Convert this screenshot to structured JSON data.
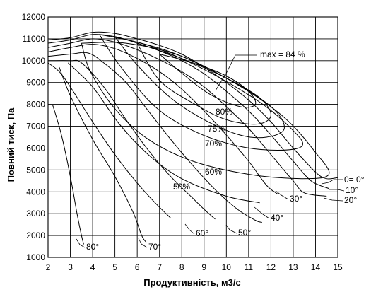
{
  "chart_data": {
    "type": "line",
    "title": "",
    "xlabel": "Продуктивність, м3/с",
    "ylabel": "Повний тиск, Па",
    "xlim": [
      2,
      15
    ],
    "ylim": [
      1000,
      12000
    ],
    "x_ticks": [
      2,
      3,
      4,
      5,
      6,
      7,
      8,
      9,
      10,
      11,
      12,
      13,
      14,
      15
    ],
    "y_ticks": [
      1000,
      2000,
      3000,
      4000,
      5000,
      6000,
      7000,
      8000,
      9000,
      10000,
      11000,
      12000
    ],
    "grid": true,
    "series": [
      {
        "name": "0=0°",
        "points": [
          [
            2.0,
            10950
          ],
          [
            3.0,
            11050
          ],
          [
            4.0,
            11300
          ],
          [
            5.0,
            11250
          ],
          [
            6.0,
            11000
          ],
          [
            7.0,
            10700
          ],
          [
            8.0,
            10300
          ],
          [
            9.0,
            9700
          ],
          [
            10.0,
            9000
          ],
          [
            11.0,
            8200
          ],
          [
            12.0,
            7200
          ],
          [
            13.0,
            6000
          ],
          [
            14.0,
            4900
          ],
          [
            14.5,
            4600
          ],
          [
            15.0,
            4650
          ]
        ]
      },
      {
        "name": "10°",
        "points": [
          [
            2.0,
            10800
          ],
          [
            3.0,
            10950
          ],
          [
            4.0,
            11200
          ],
          [
            5.0,
            11100
          ],
          [
            6.0,
            10800
          ],
          [
            7.0,
            10450
          ],
          [
            8.0,
            10000
          ],
          [
            9.0,
            9400
          ],
          [
            10.0,
            8600
          ],
          [
            11.0,
            7700
          ],
          [
            12.0,
            6600
          ],
          [
            13.0,
            5400
          ],
          [
            13.8,
            4500
          ],
          [
            14.6,
            4150
          ]
        ]
      },
      {
        "name": "20°",
        "points": [
          [
            2.0,
            10600
          ],
          [
            3.0,
            10800
          ],
          [
            4.0,
            11000
          ],
          [
            5.0,
            10850
          ],
          [
            6.0,
            10500
          ],
          [
            7.0,
            10050
          ],
          [
            8.0,
            9500
          ],
          [
            9.0,
            8800
          ],
          [
            10.0,
            7900
          ],
          [
            11.0,
            6900
          ],
          [
            12.0,
            5700
          ],
          [
            13.0,
            4500
          ],
          [
            13.5,
            3950
          ],
          [
            14.5,
            3800
          ]
        ]
      },
      {
        "name": "30°",
        "points": [
          [
            2.0,
            10400
          ],
          [
            3.0,
            10600
          ],
          [
            4.0,
            10750
          ],
          [
            5.0,
            10550
          ],
          [
            6.0,
            10100
          ],
          [
            7.0,
            9500
          ],
          [
            8.0,
            8700
          ],
          [
            9.0,
            7700
          ],
          [
            10.0,
            6600
          ],
          [
            11.0,
            5400
          ],
          [
            11.8,
            4300
          ],
          [
            12.3,
            3900
          ]
        ]
      },
      {
        "name": "40°",
        "points": [
          [
            2.0,
            10200
          ],
          [
            3.0,
            10300
          ],
          [
            3.8,
            10350
          ],
          [
            4.5,
            9900
          ],
          [
            5.5,
            9000
          ],
          [
            6.5,
            7700
          ],
          [
            7.5,
            6400
          ],
          [
            8.5,
            5200
          ],
          [
            9.5,
            4100
          ],
          [
            10.5,
            3200
          ],
          [
            11.3,
            2700
          ],
          [
            11.6,
            2600
          ]
        ]
      },
      {
        "name": "50°",
        "points": [
          [
            2.0,
            10000
          ],
          [
            3.0,
            10000
          ],
          [
            3.5,
            9900
          ],
          [
            4.5,
            8800
          ],
          [
            5.5,
            7300
          ],
          [
            6.5,
            5900
          ],
          [
            7.5,
            4700
          ],
          [
            8.5,
            3700
          ],
          [
            9.0,
            3200
          ],
          [
            9.5,
            2750
          ]
        ]
      },
      {
        "name": "60°",
        "points": [
          [
            2.0,
            9900
          ],
          [
            2.5,
            9500
          ],
          [
            3.0,
            8800
          ],
          [
            4.0,
            7200
          ],
          [
            5.0,
            5700
          ],
          [
            6.0,
            4400
          ],
          [
            6.8,
            3500
          ],
          [
            7.5,
            2800
          ]
        ]
      },
      {
        "name": "70°",
        "points": [
          [
            2.5,
            9700
          ],
          [
            3.0,
            8400
          ],
          [
            4.0,
            6400
          ],
          [
            5.0,
            4700
          ],
          [
            5.8,
            3100
          ],
          [
            6.2,
            2000
          ],
          [
            6.4,
            1700
          ]
        ]
      },
      {
        "name": "80°",
        "points": [
          [
            2.2,
            8000
          ],
          [
            2.6,
            6600
          ],
          [
            3.0,
            4700
          ],
          [
            3.3,
            3000
          ],
          [
            3.5,
            2000
          ],
          [
            3.6,
            1600
          ]
        ]
      }
    ],
    "efficiency_contours": [
      "max = 84 %",
      "80%",
      "75%",
      "70%",
      "60%",
      "50%"
    ],
    "annotations": [
      "max = 84 %",
      "80%",
      "75%",
      "70%",
      "60%",
      "50%",
      "0= 0°",
      "10°",
      "20°",
      "30°",
      "40°",
      "50°",
      "60°",
      "70°",
      "80°"
    ]
  }
}
